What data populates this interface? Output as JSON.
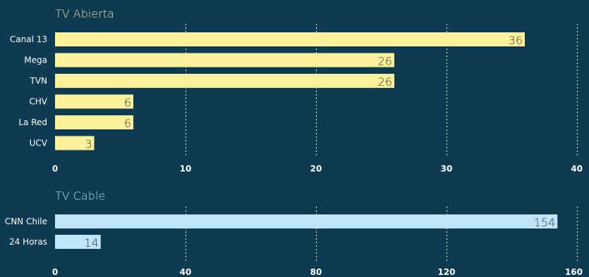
{
  "colors": {
    "background": "#0e3a52",
    "title": "#e9e690",
    "title_cable": "#b8def2",
    "bar_abierta": "#fcf29b",
    "bar_cable": "#bfe5f8",
    "text": "#ffffff",
    "value_text": "#333333"
  },
  "chart_data": [
    {
      "type": "bar",
      "orientation": "horizontal",
      "title": "TV Abierta",
      "categories": [
        "Canal 13",
        "Mega",
        "TVN",
        "CHV",
        "La Red",
        "UCV"
      ],
      "values": [
        36,
        26,
        26,
        6,
        6,
        3
      ],
      "xlim": [
        0,
        40
      ],
      "ticks": [
        0,
        10,
        20,
        30,
        40
      ],
      "tick_labels": [
        "0",
        "10",
        "20",
        "30",
        "40"
      ],
      "value_labels": [
        "36",
        "26",
        "26",
        "6",
        "6",
        "3"
      ],
      "grid": true
    },
    {
      "type": "bar",
      "orientation": "horizontal",
      "title": "TV Cable",
      "categories": [
        "CNN Chile",
        "24 Horas"
      ],
      "values": [
        154,
        14
      ],
      "xlim": [
        0,
        160
      ],
      "ticks": [
        0,
        40,
        80,
        120,
        160
      ],
      "tick_labels": [
        "0",
        "40",
        "80",
        "120",
        "160"
      ],
      "value_labels": [
        "154",
        "14"
      ],
      "grid": true
    }
  ]
}
